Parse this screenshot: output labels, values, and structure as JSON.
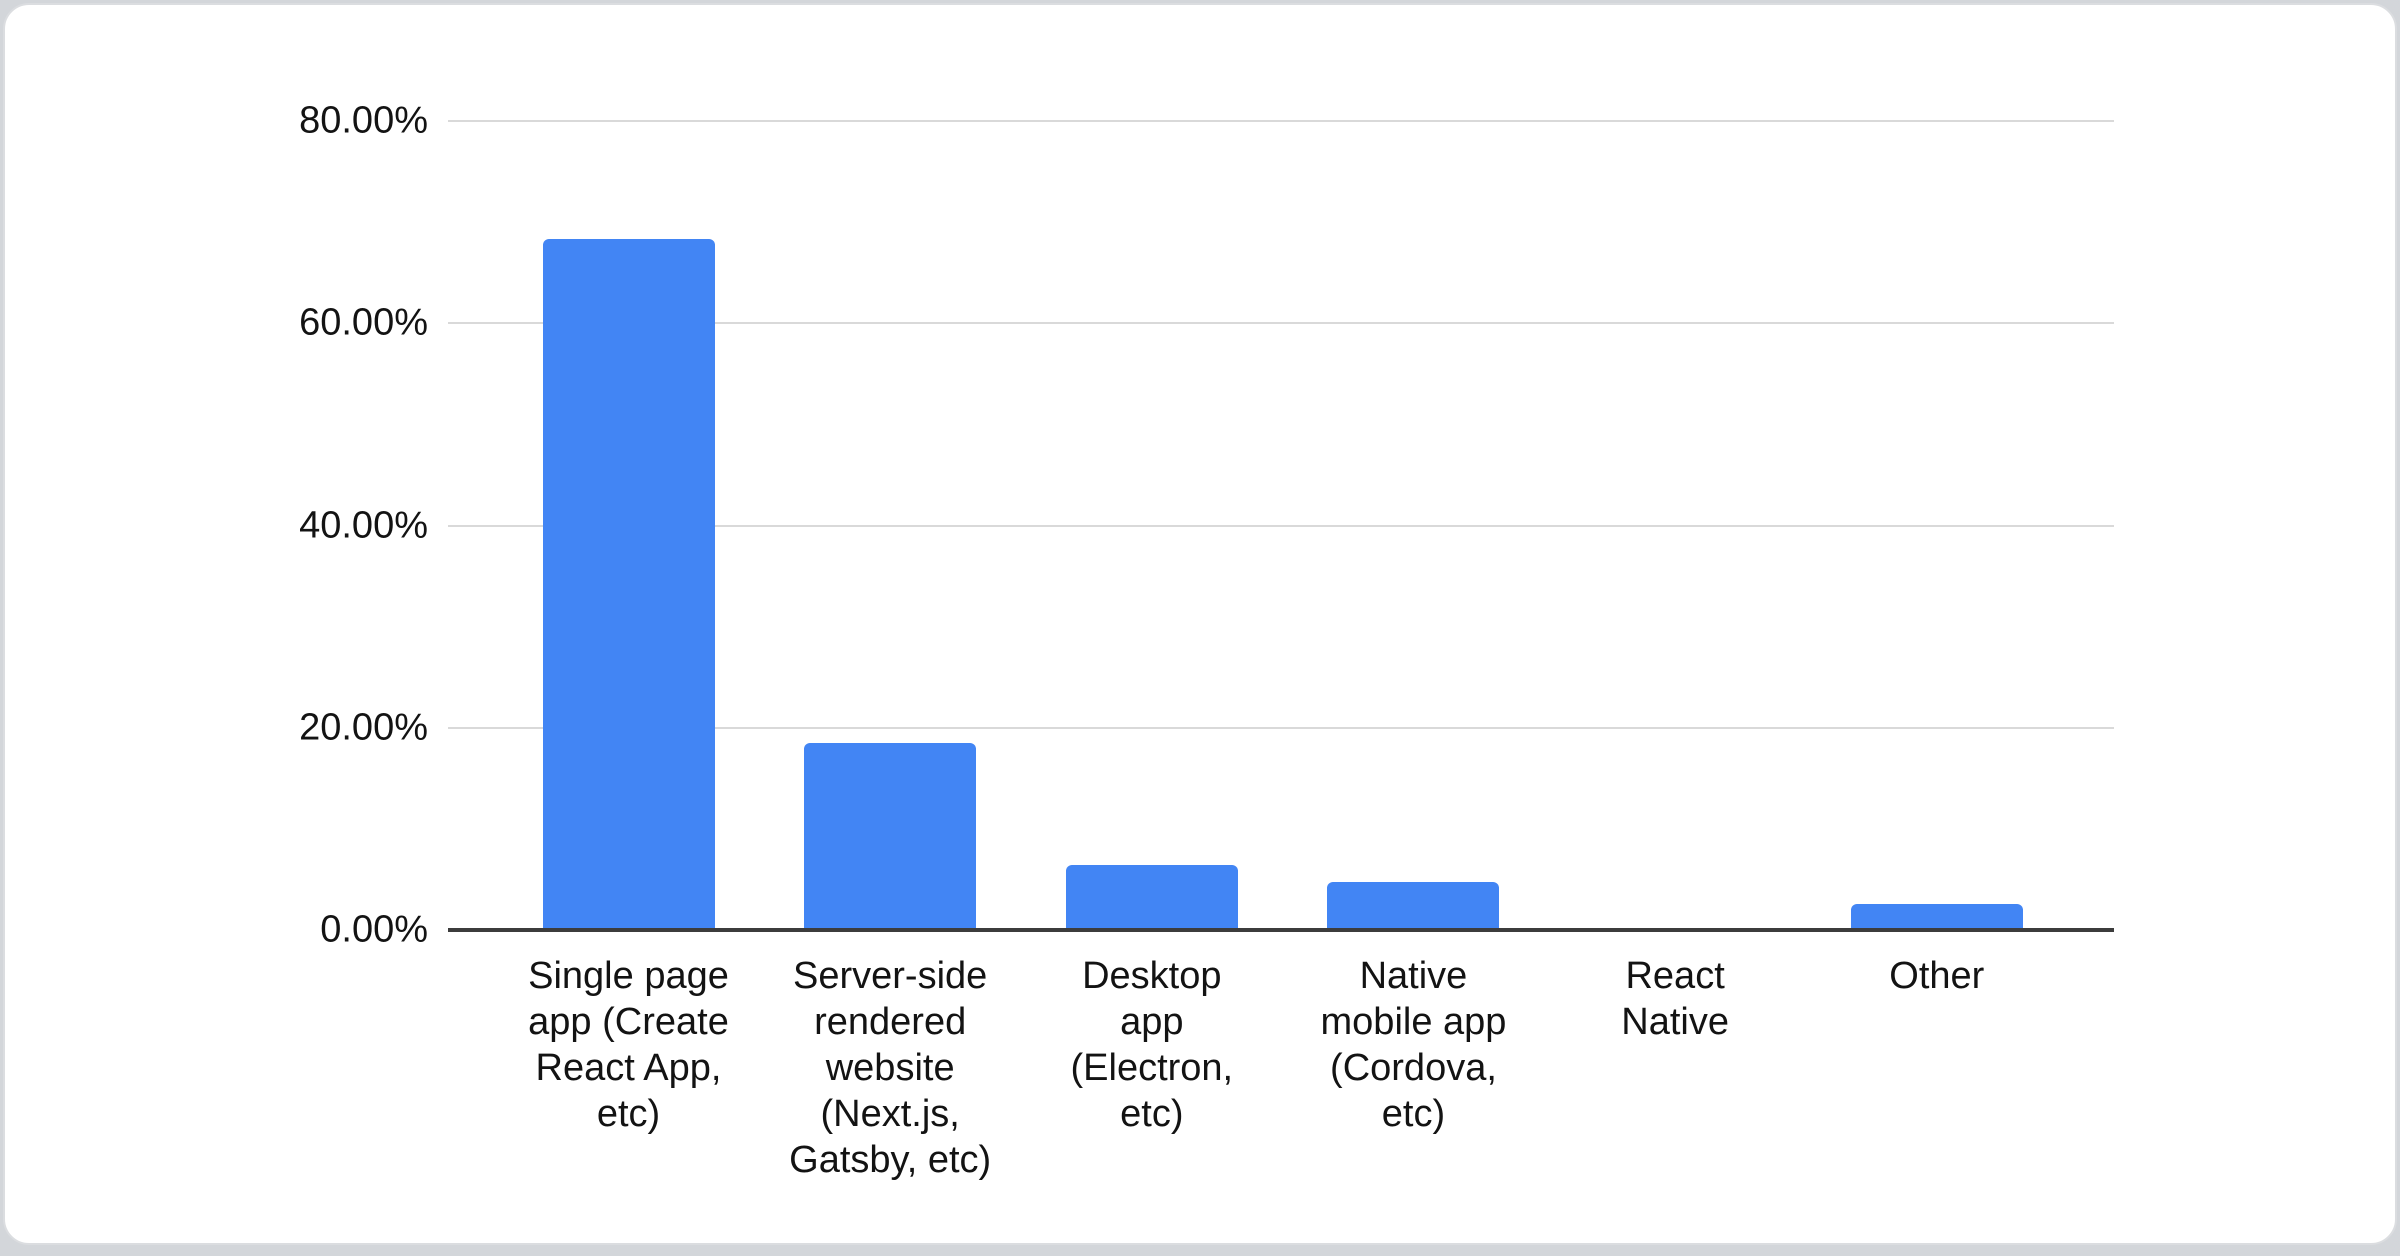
{
  "page": {
    "background": "#d3d6da",
    "card_background": "#ffffff",
    "card_border": "#dbdde0"
  },
  "chart_data": {
    "type": "bar",
    "title": "",
    "xlabel": "",
    "ylabel": "",
    "categories": [
      "Single page app (Create React App, etc)",
      "Server-side rendered website (Next.js, Gatsby, etc)",
      "Desktop app (Electron, etc)",
      "Native mobile app (Cordova, etc)",
      "React Native",
      "Other"
    ],
    "categories_wrapped": [
      "Single page\napp (Create\nReact App,\netc)",
      "Server-side\nrendered\nwebsite\n(Next.js,\nGatsby, etc)",
      "Desktop\napp\n(Electron,\netc)",
      "Native\nmobile app\n(Cordova,\netc)",
      "React\nNative",
      "Other"
    ],
    "values": [
      68.3,
      18.5,
      6.4,
      4.7,
      0,
      2.6
    ],
    "value_unit": "%",
    "ylim": [
      0,
      80
    ],
    "y_ticks": [
      {
        "label": "80.00%",
        "value": 80
      },
      {
        "label": "60.00%",
        "value": 60
      },
      {
        "label": "40.00%",
        "value": 40
      },
      {
        "label": "20.00%",
        "value": 20
      },
      {
        "label": "0.00%",
        "value": 0
      }
    ],
    "grid": true,
    "legend": "none",
    "colors": {
      "bar": "#4285f4",
      "gridline": "#d9d9d9",
      "axis_line": "#3c3c3c",
      "label_text": "#131313"
    }
  }
}
